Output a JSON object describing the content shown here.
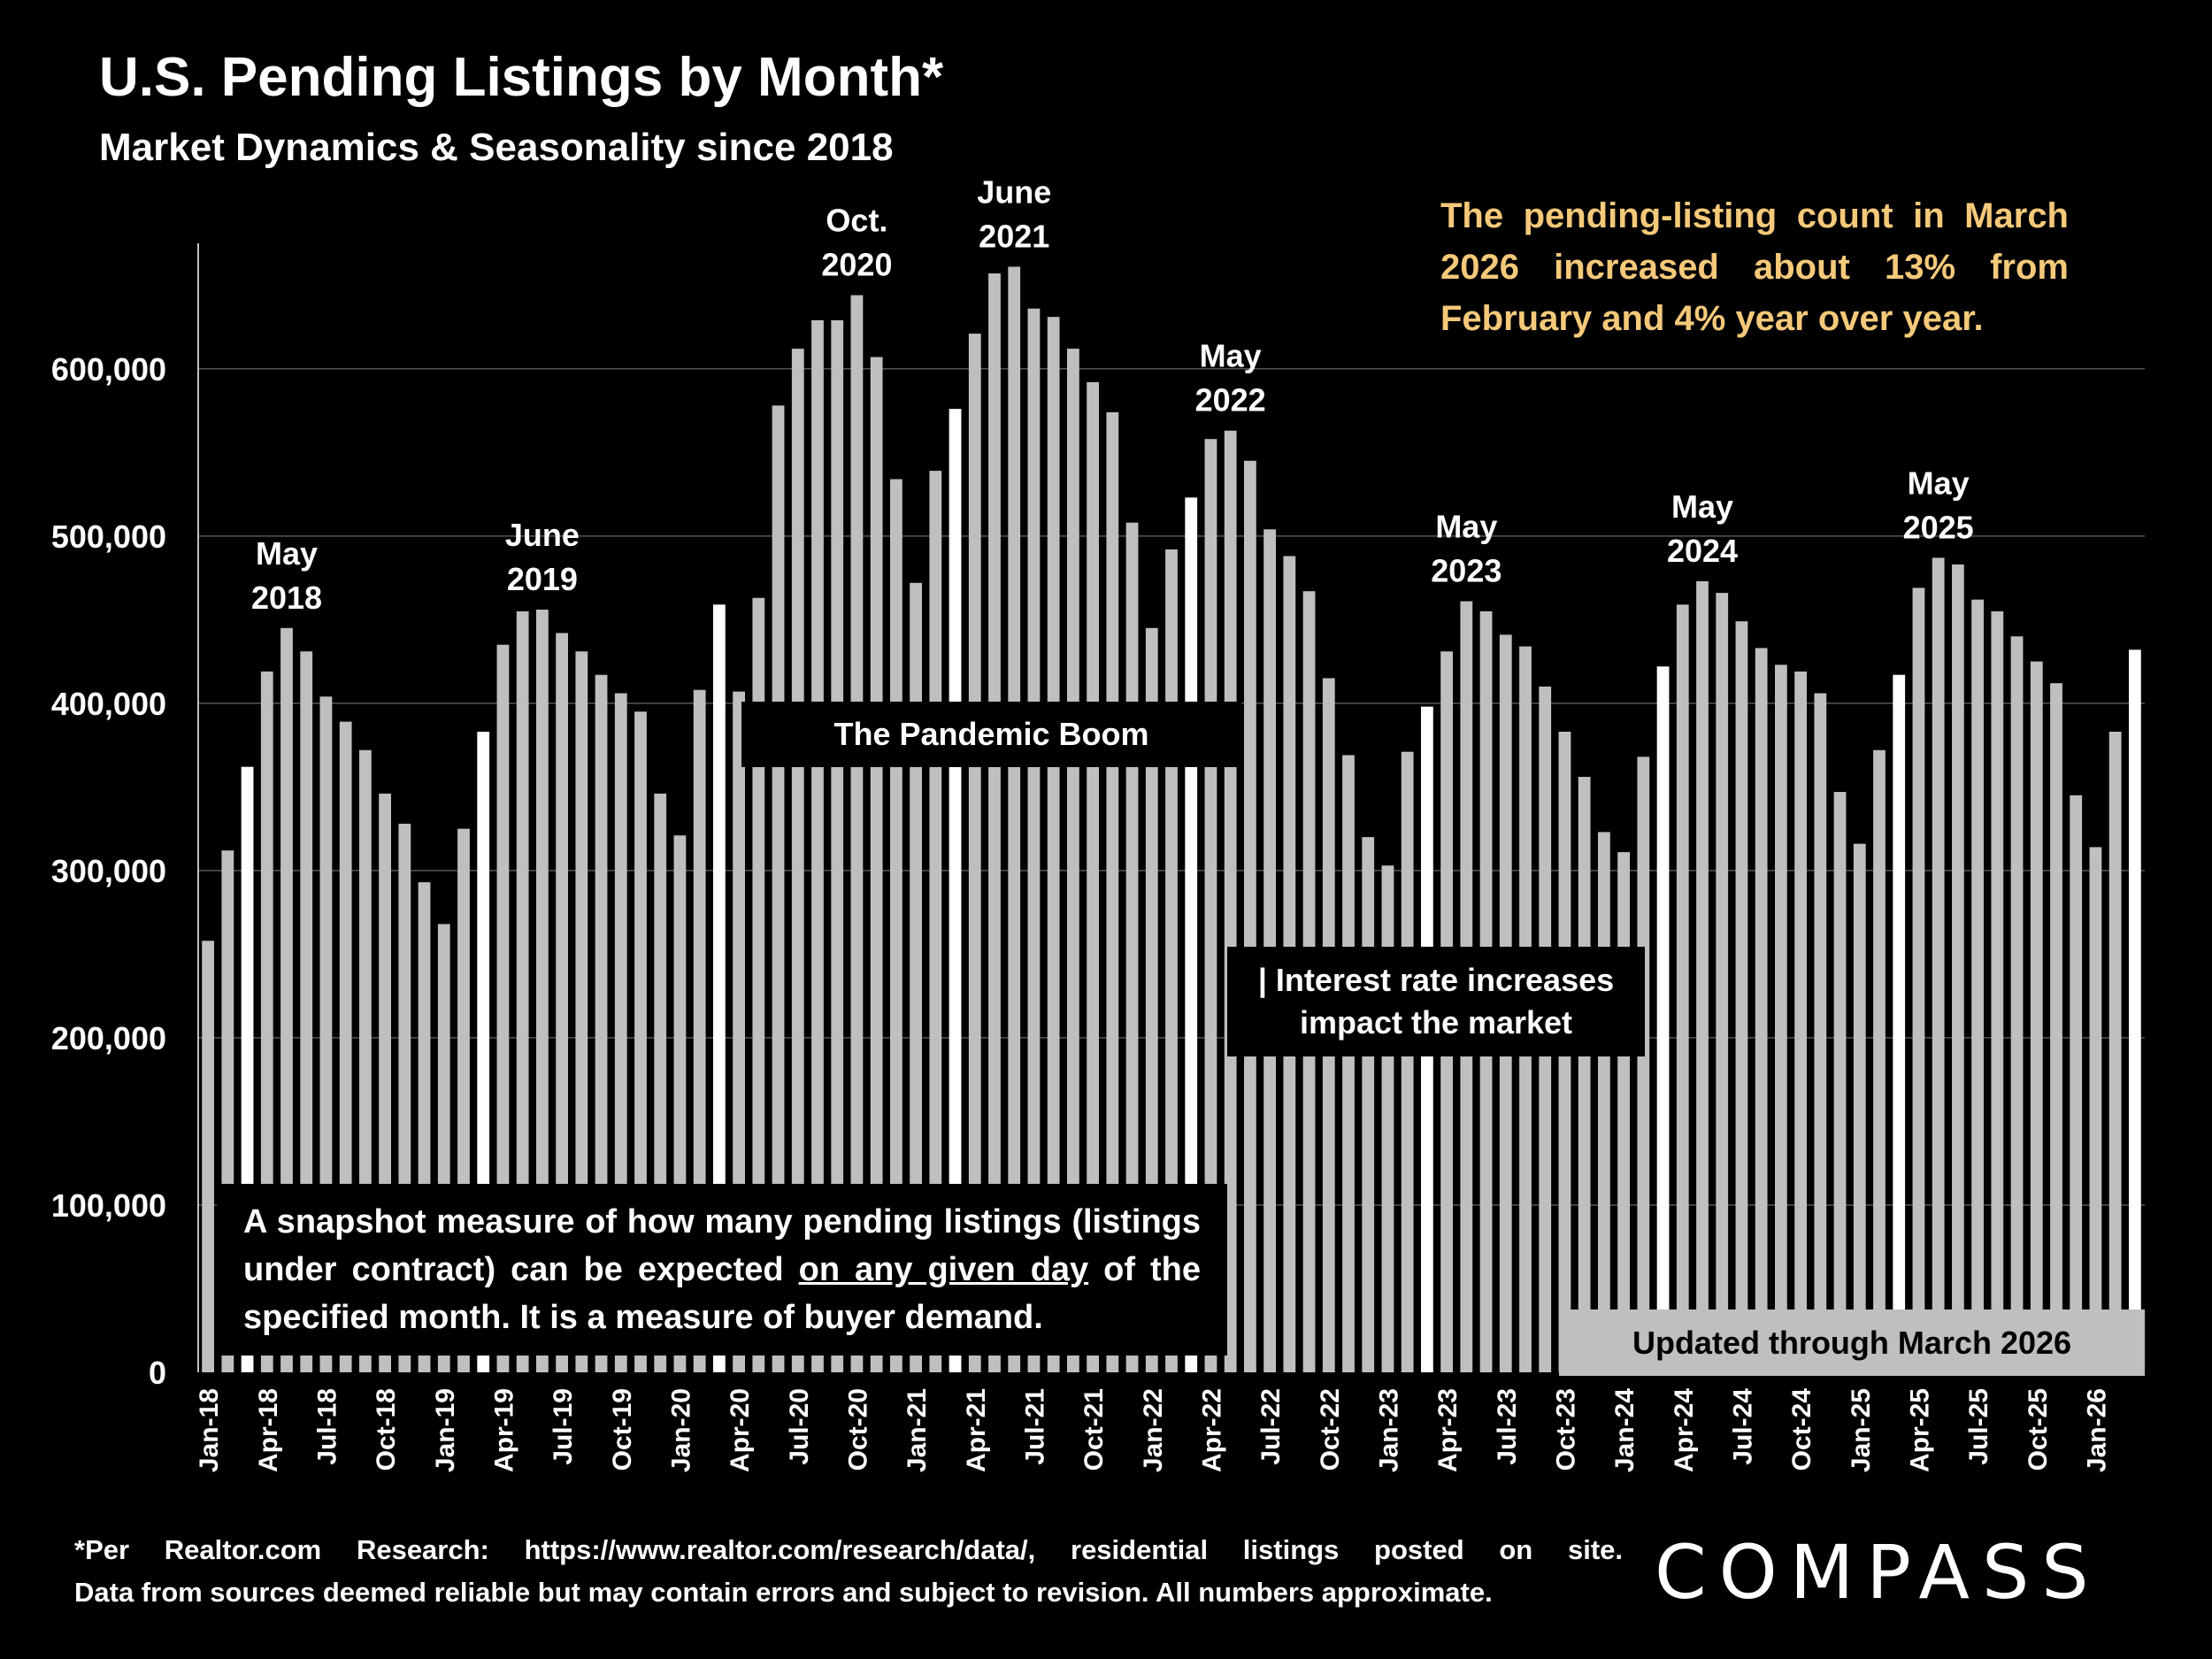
{
  "title": "U.S. Pending Listings by Month*",
  "subtitle": "Market Dynamics & Seasonality since 2018",
  "callout": "The pending-listing count in March 2026 increased about 13% from February and 4% year over year.",
  "boxes": {
    "pandemic": "The Pandemic Boom",
    "rates_line1": "| Interest rate increases",
    "rates_line2": "impact the market",
    "snapshot_part1": "A snapshot measure of how many pending listings (listings under contract) can be expected ",
    "snapshot_underlined": "on any given day",
    "snapshot_part2": " of the specified month. It is a measure of buyer demand.",
    "updated": "Updated through March 2026"
  },
  "footnote": {
    "line1": "*Per Realtor.com Research: https://www.realtor.com/research/data/, residential listings posted on site.",
    "line2": "Data from sources deemed reliable but may contain errors and subject to revision. All numbers approximate."
  },
  "logo": "COMPASS",
  "colors": {
    "bar": "#bfbfbf",
    "bar_highlight": "#ffffff",
    "callout": "#f5c97a",
    "background": "#000000"
  },
  "chart_data": {
    "type": "bar",
    "title": "U.S. Pending Listings by Month*",
    "xlabel": "",
    "ylabel": "",
    "ylim": [
      0,
      675000
    ],
    "yticks": [
      0,
      100000,
      200000,
      300000,
      400000,
      500000,
      600000
    ],
    "ytick_labels": [
      "0",
      "100,000",
      "200,000",
      "300,000",
      "400,000",
      "500,000",
      "600,000"
    ],
    "xtick_labels": [
      "Jan-18",
      "Apr-18",
      "Jul-18",
      "Oct-18",
      "Jan-19",
      "Apr-19",
      "Jul-19",
      "Oct-19",
      "Jan-20",
      "Apr-20",
      "Jul-20",
      "Oct-20",
      "Jan-21",
      "Apr-21",
      "Jul-21",
      "Oct-21",
      "Jan-22",
      "Apr-22",
      "Jul-22",
      "Oct-22",
      "Jan-23",
      "Apr-23",
      "Jul-23",
      "Oct-23",
      "Jan-24",
      "Apr-24",
      "Jul-24",
      "Oct-24",
      "Jan-25",
      "Apr-25",
      "Jul-25",
      "Oct-25",
      "Jan-26"
    ],
    "highlight_note": "March bars shown in white",
    "values": [
      258000,
      312000,
      362000,
      419000,
      445000,
      431000,
      404000,
      389000,
      372000,
      346000,
      328000,
      293000,
      268000,
      325000,
      383000,
      435000,
      455000,
      456000,
      442000,
      431000,
      417000,
      406000,
      395000,
      346000,
      321000,
      408000,
      459000,
      407000,
      463000,
      578000,
      612000,
      629000,
      629000,
      644000,
      607000,
      534000,
      472000,
      539000,
      576000,
      621000,
      657000,
      661000,
      636000,
      631000,
      612000,
      592000,
      574000,
      508000,
      445000,
      492000,
      523000,
      558000,
      563000,
      545000,
      504000,
      488000,
      467000,
      415000,
      369000,
      320000,
      303000,
      371000,
      398000,
      431000,
      461000,
      455000,
      441000,
      434000,
      410000,
      383000,
      356000,
      323000,
      311000,
      368000,
      422000,
      459000,
      473000,
      466000,
      449000,
      433000,
      423000,
      419000,
      406000,
      347000,
      316000,
      372000,
      417000,
      469000,
      487000,
      483000,
      462000,
      455000,
      440000,
      425000,
      412000,
      345000,
      314000,
      383000,
      432000
    ],
    "annotations": [
      {
        "label_line1": "May",
        "label_line2": "2018",
        "index": 4
      },
      {
        "label_line1": "June",
        "label_line2": "2019",
        "index": 17
      },
      {
        "label_line1": "Oct.",
        "label_line2": "2020",
        "index": 33
      },
      {
        "label_line1": "June",
        "label_line2": "2021",
        "index": 41
      },
      {
        "label_line1": "May",
        "label_line2": "2022",
        "index": 52
      },
      {
        "label_line1": "May",
        "label_line2": "2023",
        "index": 64
      },
      {
        "label_line1": "May",
        "label_line2": "2024",
        "index": 76
      },
      {
        "label_line1": "May",
        "label_line2": "2025",
        "index": 88
      }
    ]
  }
}
